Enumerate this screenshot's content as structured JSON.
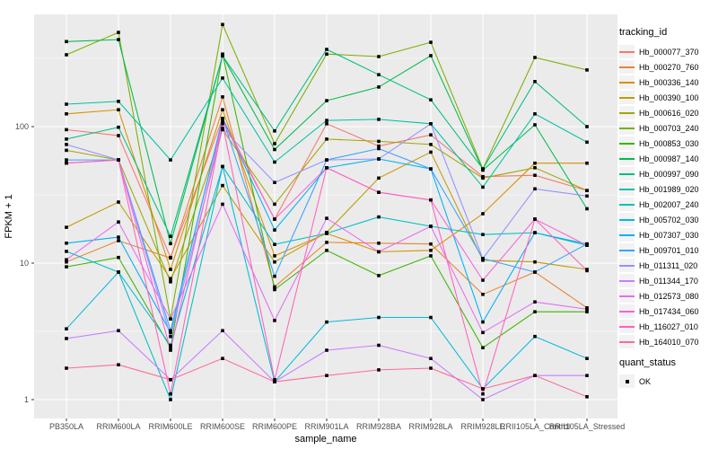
{
  "figure": {
    "background": "#FFFFFF",
    "panel_background": "#EBEBEB",
    "grid_color": "#FFFFFF",
    "tick_label_color": "#4D4D4D",
    "tick_mark_color": "#333333",
    "text_color": "#000000"
  },
  "axes": {
    "x_label": "sample_name",
    "y_label": "FPKM + 1",
    "y_tick_labels": [
      "1",
      "10",
      "100"
    ]
  },
  "legend": {
    "tracking_title": "tracking_id",
    "quant_title": "quant_status",
    "quant_ok_label": "OK"
  },
  "chart_data": {
    "type": "line",
    "title": "",
    "x_axis": {
      "label": "sample_name",
      "categories": [
        "PB350LA",
        "RRIM600LA",
        "RRIM600LE",
        "RRIM600SE",
        "RRIM600PE",
        "RRIM901LA",
        "RRIM928BA",
        "RRIM928LA",
        "RRIM928LE",
        "RRII105LA_Control",
        "RRII105LA_Stressed"
      ]
    },
    "y_axis": {
      "label": "FPKM + 1",
      "scale": "log10",
      "ticks": [
        1,
        10,
        100
      ],
      "range_hint": [
        1,
        600
      ],
      "minor_gridlines_log10": [
        0.5,
        1.5,
        2.5
      ]
    },
    "point_marker": {
      "shape": "square",
      "color": "#000000",
      "legend_group": "quant_status",
      "legend_value": "OK"
    },
    "legend_position": "right",
    "series": [
      {
        "name": "Hb_000077_370",
        "color": "#F8766D",
        "values": [
          95,
          86,
          11,
          115,
          21,
          105,
          72,
          87,
          43,
          44,
          34
        ]
      },
      {
        "name": "Hb_000270_760",
        "color": "#EA8331",
        "values": [
          10.2,
          14.6,
          10.9,
          165,
          6.7,
          14.2,
          14,
          13.8,
          5.9,
          8.6,
          4.7
        ]
      },
      {
        "name": "Hb_000336_140",
        "color": "#D89000",
        "values": [
          124,
          133,
          9,
          133,
          11.3,
          16.5,
          12.1,
          12.4,
          23,
          54,
          54
        ]
      },
      {
        "name": "Hb_000390_100",
        "color": "#C09B00",
        "values": [
          18.3,
          28,
          7.7,
          37,
          10.2,
          16.8,
          42,
          65,
          10.5,
          10.2,
          9
        ]
      },
      {
        "name": "Hb_000616_020",
        "color": "#A3A500",
        "values": [
          67,
          57,
          7.3,
          95,
          27,
          81,
          78,
          74,
          42,
          50,
          34
        ]
      },
      {
        "name": "Hb_000703_240",
        "color": "#7CAE00",
        "values": [
          336,
          490,
          3.9,
          560,
          75,
          340,
          326,
          415,
          49,
          321,
          260
        ]
      },
      {
        "name": "Hb_000853_030",
        "color": "#39B600",
        "values": [
          9.4,
          11,
          2.4,
          340,
          6.4,
          12.4,
          8.1,
          11.3,
          2.4,
          4.4,
          4.4
        ]
      },
      {
        "name": "Hb_000987_140",
        "color": "#00BB4E",
        "values": [
          420,
          434,
          13.9,
          330,
          68,
          155,
          195,
          331,
          48,
          103,
          25
        ]
      },
      {
        "name": "Hb_000997_090",
        "color": "#00BF7D",
        "values": [
          81,
          99,
          15.7,
          330,
          93,
          368,
          240,
          157,
          49,
          214,
          100
        ]
      },
      {
        "name": "Hb_001989_020",
        "color": "#00C1A3",
        "values": [
          146,
          153,
          57,
          227,
          55,
          111,
          113,
          105,
          36,
          124,
          77
        ]
      },
      {
        "name": "Hb_002007_240",
        "color": "#00BFC4",
        "values": [
          12.2,
          8.6,
          1,
          51,
          13.7,
          16.5,
          21.8,
          18.6,
          16.2,
          16.7,
          13.5
        ]
      },
      {
        "name": "Hb_005702_030",
        "color": "#00BAE0",
        "values": [
          3.3,
          8.6,
          2.5,
          51,
          1.35,
          3.7,
          4,
          4,
          1.2,
          2.9,
          2
        ]
      },
      {
        "name": "Hb_007307_030",
        "color": "#00B0F6",
        "values": [
          14,
          15.5,
          3.1,
          115,
          17.5,
          50,
          58,
          49,
          3.7,
          16.7,
          13.8
        ]
      },
      {
        "name": "Hb_009701_010",
        "color": "#35A2FF",
        "values": [
          57,
          57,
          3.2,
          115,
          8,
          57,
          69,
          49,
          10.8,
          8.6,
          13.8
        ]
      },
      {
        "name": "Hb_011311_020",
        "color": "#9590FF",
        "values": [
          74,
          57,
          2.9,
          97,
          39,
          57,
          58,
          105,
          10.8,
          35,
          31
        ]
      },
      {
        "name": "Hb_011344_170",
        "color": "#C77CFF",
        "values": [
          2.8,
          3.2,
          1.4,
          3.2,
          1.35,
          2.3,
          2.5,
          2,
          1,
          1.5,
          1.5
        ]
      },
      {
        "name": "Hb_012573_080",
        "color": "#E76BF3",
        "values": [
          10.6,
          20,
          3.9,
          27,
          3.8,
          21.3,
          12.1,
          18.6,
          3.1,
          5.2,
          4.6
        ]
      },
      {
        "name": "Hb_017434_060",
        "color": "#FA62DB",
        "values": [
          54,
          57,
          2.3,
          110,
          21,
          50,
          33,
          29,
          7.5,
          21,
          13.5
        ]
      },
      {
        "name": "Hb_116027_010",
        "color": "#FF62BC",
        "values": [
          54,
          57,
          1.1,
          105,
          1.4,
          50,
          33,
          29,
          1.1,
          21,
          8.8
        ]
      },
      {
        "name": "Hb_164010_070",
        "color": "#FF6A98",
        "values": [
          1.7,
          1.8,
          1.4,
          2,
          1.35,
          1.5,
          1.65,
          1.7,
          1.2,
          1.5,
          1.05
        ]
      }
    ]
  }
}
